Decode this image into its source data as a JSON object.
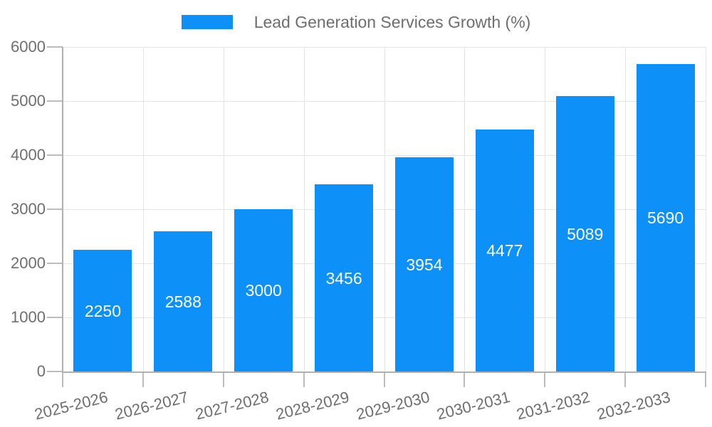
{
  "legend": {
    "label": "Lead Generation Services Growth (%)",
    "swatch_color": "#0d90f8"
  },
  "chart_data": {
    "type": "bar",
    "title": "",
    "xlabel": "",
    "ylabel": "",
    "categories": [
      "2025-2026",
      "2026-2027",
      "2027-2028",
      "2028-2029",
      "2029-2030",
      "2030-2031",
      "2031-2032",
      "2032-2033"
    ],
    "series": [
      {
        "name": "Lead Generation Services Growth (%)",
        "values": [
          2250,
          2588,
          3000,
          3456,
          3954,
          4477,
          5089,
          5690
        ]
      }
    ],
    "value_labels_shown": true,
    "value_label_position": "inside-center",
    "ylim": [
      0,
      6000
    ],
    "yticks": [
      0,
      1000,
      2000,
      3000,
      4000,
      5000,
      6000
    ],
    "grid": true,
    "legend_position": "top-center",
    "colors": {
      "bar": "#0d90f8",
      "value_label_text": "#ffffff",
      "tick_label_text": "#6e6e6e",
      "gridline": "#e4e4e4",
      "axis_line": "#b0b0b0"
    }
  }
}
